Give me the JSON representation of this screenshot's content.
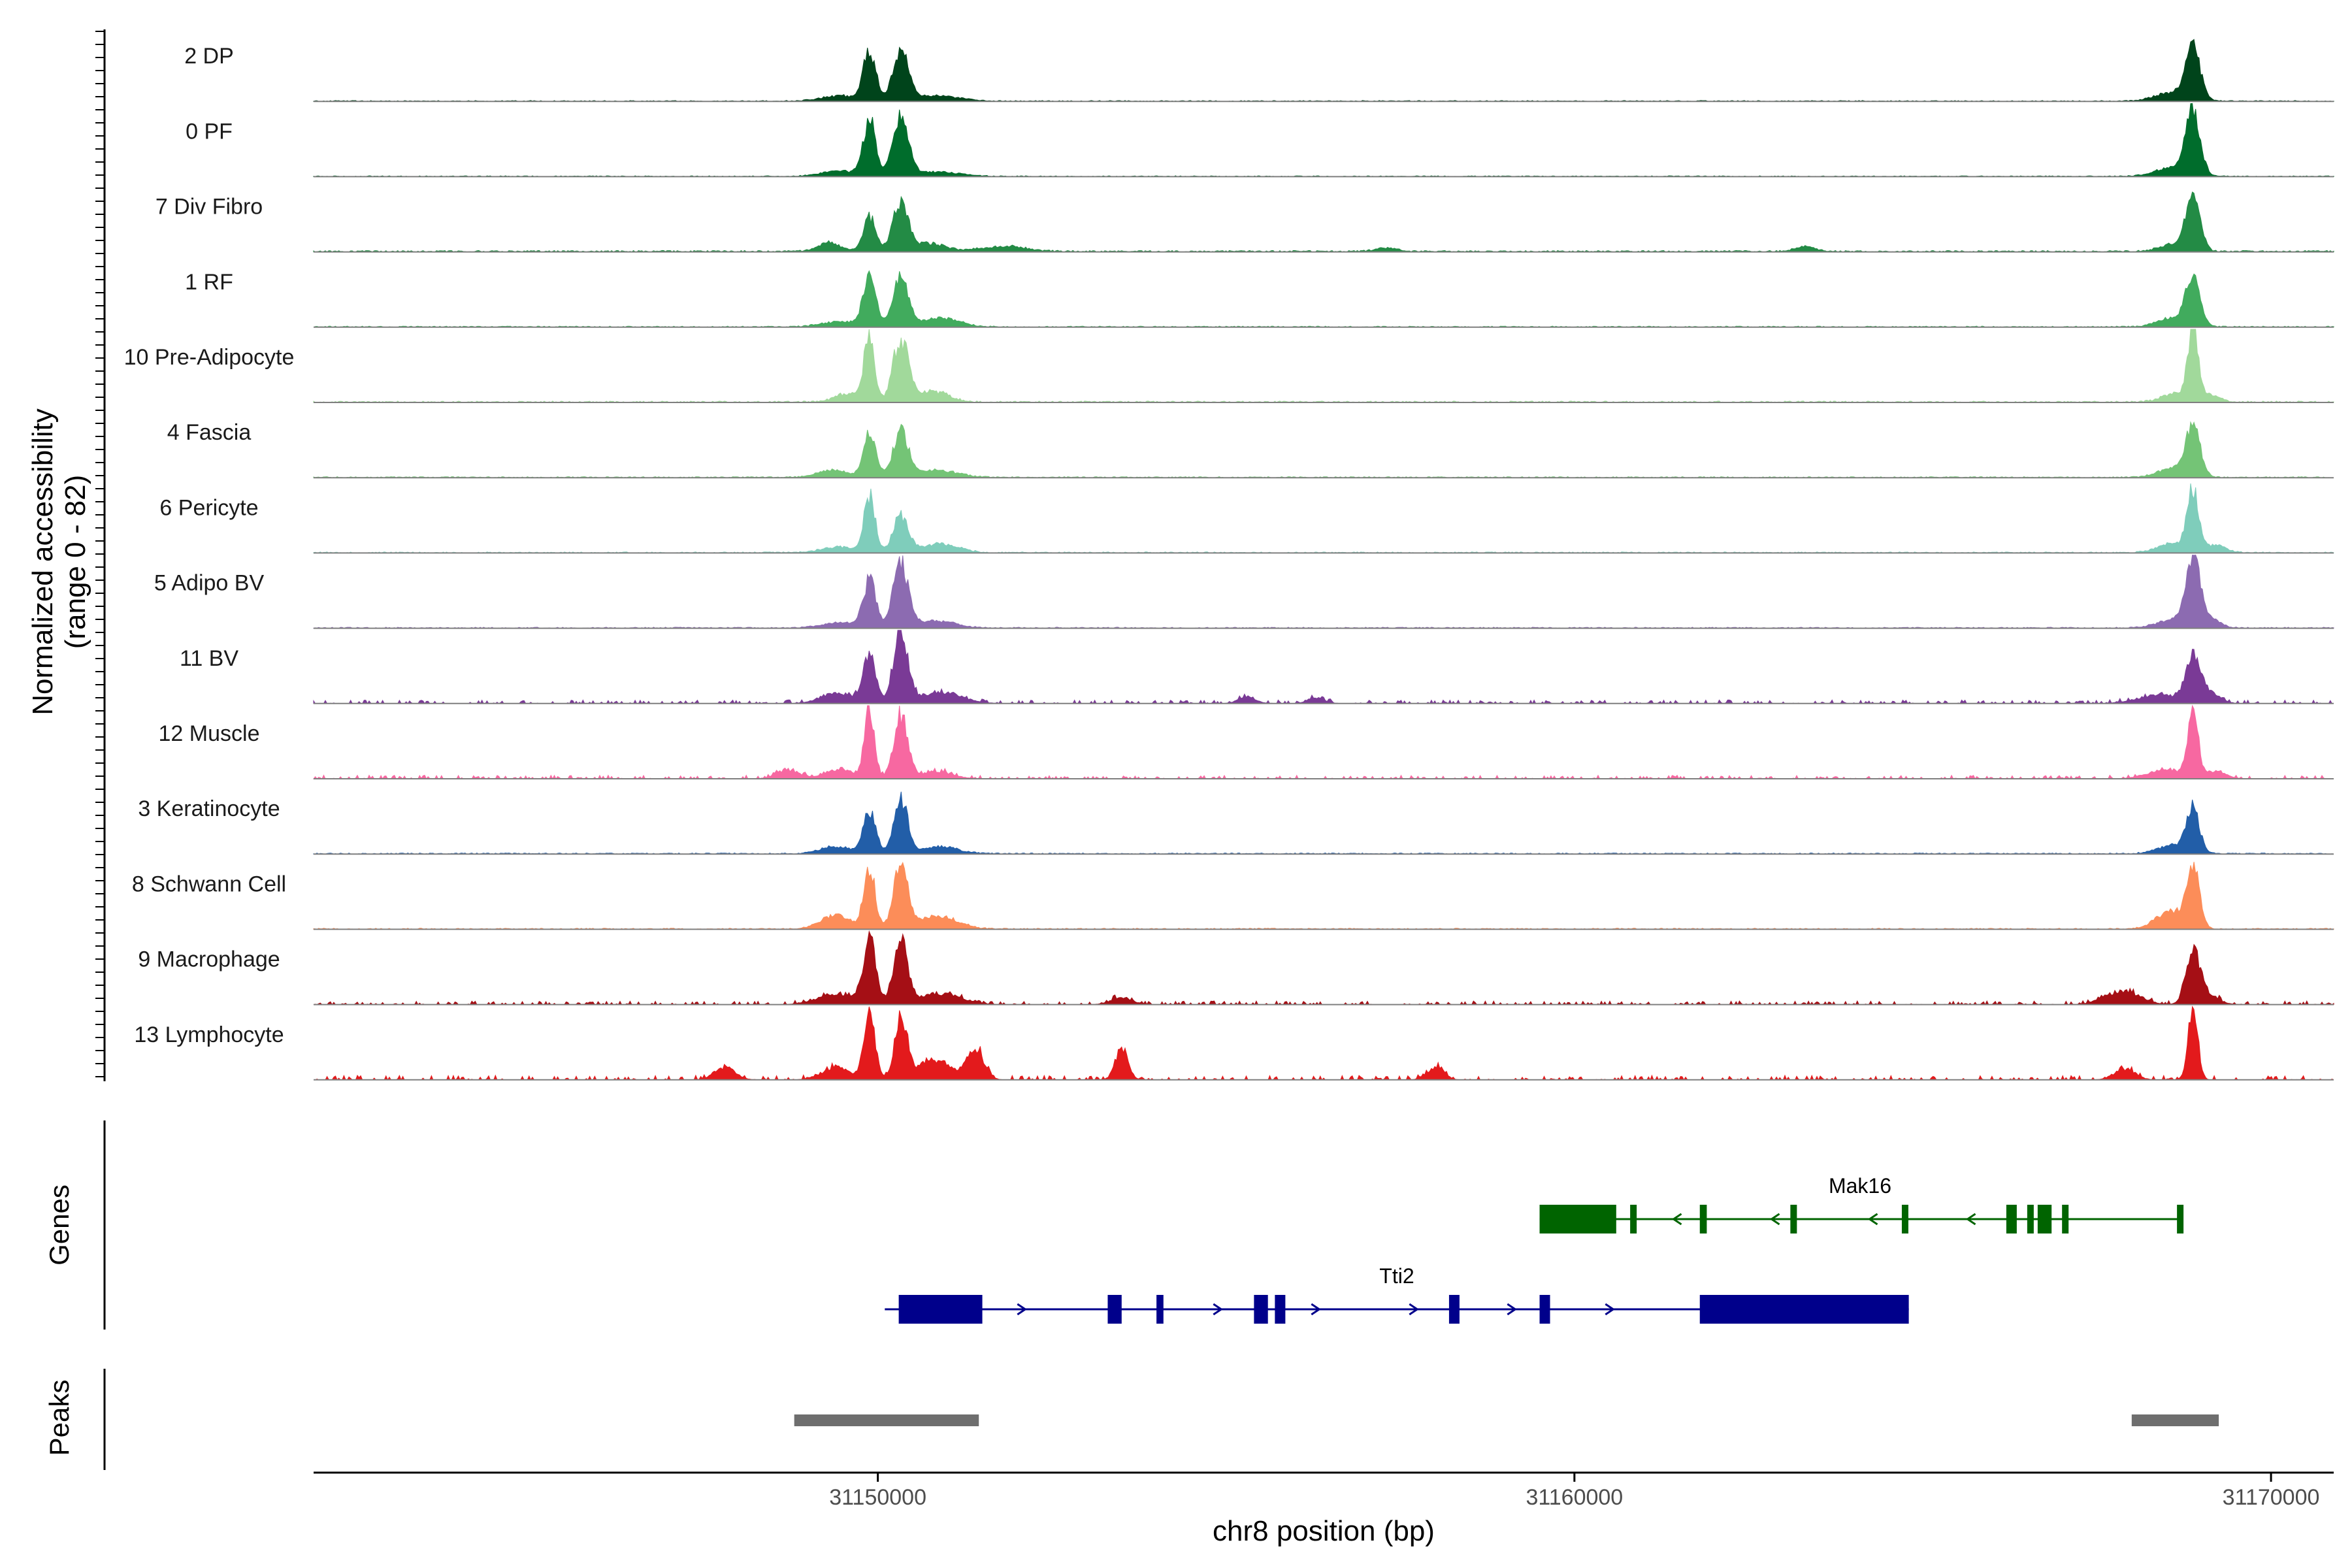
{
  "chart_data": {
    "type": "area",
    "subtype": "genome-coverage-track",
    "region": {
      "chrom": "chr8",
      "start": 31141900,
      "end": 31170900
    },
    "y_axis_title_line1": "Normalized accessibility",
    "y_axis_title_line2": "(range 0 - 82)",
    "y_range": [
      0,
      82
    ],
    "xlabel": "chr8 position (bp)",
    "x_ticks": [
      31150000,
      31160000,
      31170000
    ],
    "x_tick_labels": [
      "31150000",
      "31160000",
      "31170000"
    ],
    "tracks": [
      {
        "name": "2 DP",
        "color": "#00441b",
        "dense": 0.8,
        "noise": 1.0,
        "peaks": [
          [
            31149880,
            55,
            90
          ],
          [
            31150330,
            55,
            110
          ],
          [
            31149450,
            6,
            260
          ],
          [
            31150850,
            6,
            320
          ],
          [
            31168880,
            60,
            100
          ],
          [
            31168600,
            10,
            250
          ]
        ]
      },
      {
        "name": "0 PF",
        "color": "#006d2c",
        "dense": 0.8,
        "noise": 1.0,
        "peaks": [
          [
            31149880,
            62,
            90
          ],
          [
            31150330,
            65,
            110
          ],
          [
            31149450,
            6,
            260
          ],
          [
            31150850,
            5,
            320
          ],
          [
            31168880,
            70,
            100
          ],
          [
            31168600,
            10,
            250
          ]
        ]
      },
      {
        "name": "7 Div Fibro",
        "color": "#238b45",
        "dense": 0.9,
        "noise": 1.6,
        "peaks": [
          [
            31149880,
            38,
            90
          ],
          [
            31150330,
            55,
            110
          ],
          [
            31149300,
            10,
            160
          ],
          [
            31150750,
            9,
            220
          ],
          [
            31151800,
            6,
            300
          ],
          [
            31168880,
            62,
            100
          ],
          [
            31168600,
            8,
            200
          ],
          [
            31157300,
            4,
            150
          ],
          [
            31163300,
            5,
            150
          ]
        ]
      },
      {
        "name": "1 RF",
        "color": "#41ab5d",
        "dense": 0.8,
        "noise": 1.2,
        "peaks": [
          [
            31149880,
            55,
            90
          ],
          [
            31150330,
            55,
            110
          ],
          [
            31150900,
            10,
            260
          ],
          [
            31149450,
            6,
            260
          ],
          [
            31168880,
            55,
            100
          ],
          [
            31168600,
            10,
            220
          ]
        ]
      },
      {
        "name": "10 Pre-Adipocyte",
        "color": "#a1d99b",
        "dense": 0.8,
        "noise": 1.6,
        "peaks": [
          [
            31149880,
            78,
            70
          ],
          [
            31150330,
            70,
            110
          ],
          [
            31149600,
            10,
            200
          ],
          [
            31150800,
            12,
            220
          ],
          [
            31168880,
            82,
            70
          ],
          [
            31168650,
            10,
            200
          ],
          [
            31169100,
            8,
            150
          ]
        ]
      },
      {
        "name": "4 Fascia",
        "color": "#74c476",
        "dense": 0.8,
        "noise": 1.2,
        "peaks": [
          [
            31149880,
            48,
            90
          ],
          [
            31150330,
            50,
            110
          ],
          [
            31149350,
            8,
            220
          ],
          [
            31150850,
            8,
            300
          ],
          [
            31168880,
            55,
            100
          ],
          [
            31168600,
            10,
            220
          ]
        ]
      },
      {
        "name": "6 Pericyte",
        "color": "#7fcdbb",
        "dense": 0.8,
        "noise": 1.2,
        "peaks": [
          [
            31149880,
            62,
            80
          ],
          [
            31150330,
            40,
            110
          ],
          [
            31150900,
            10,
            260
          ],
          [
            31149450,
            6,
            260
          ],
          [
            31168880,
            68,
            80
          ],
          [
            31168600,
            10,
            220
          ],
          [
            31169200,
            8,
            150
          ]
        ]
      },
      {
        "name": "5 Adipo BV",
        "color": "#8c6bb1",
        "dense": 0.8,
        "noise": 1.2,
        "peaks": [
          [
            31149880,
            52,
            90
          ],
          [
            31150330,
            72,
            110
          ],
          [
            31150850,
            8,
            260
          ],
          [
            31149450,
            6,
            260
          ],
          [
            31168880,
            70,
            100
          ],
          [
            31168600,
            10,
            220
          ],
          [
            31169100,
            12,
            150
          ]
        ]
      },
      {
        "name": "11 BV",
        "color": "#7a3a96",
        "dense": 0.35,
        "noise": 4.0,
        "peaks": [
          [
            31149880,
            55,
            90
          ],
          [
            31150330,
            82,
            100
          ],
          [
            31149400,
            12,
            220
          ],
          [
            31150900,
            12,
            300
          ],
          [
            31168880,
            48,
            100
          ],
          [
            31168400,
            10,
            300
          ],
          [
            31169100,
            12,
            150
          ],
          [
            31155300,
            8,
            120
          ],
          [
            31156300,
            6,
            120
          ]
        ]
      },
      {
        "name": "12 Muscle",
        "color": "#f768a1",
        "dense": 0.35,
        "noise": 4.0,
        "peaks": [
          [
            31149880,
            78,
            70
          ],
          [
            31150330,
            72,
            100
          ],
          [
            31149450,
            10,
            220
          ],
          [
            31150850,
            8,
            220
          ],
          [
            31168880,
            78,
            70
          ],
          [
            31168500,
            10,
            260
          ],
          [
            31169200,
            8,
            150
          ],
          [
            31148700,
            10,
            150
          ]
        ]
      },
      {
        "name": "3 Keratinocyte",
        "color": "#225ea8",
        "dense": 0.8,
        "noise": 1.2,
        "peaks": [
          [
            31149880,
            48,
            90
          ],
          [
            31150330,
            60,
            100
          ],
          [
            31149400,
            8,
            220
          ],
          [
            31150900,
            8,
            260
          ],
          [
            31168880,
            48,
            90
          ],
          [
            31168600,
            10,
            220
          ]
        ]
      },
      {
        "name": "8 Schwann Cell",
        "color": "#fc8d59",
        "dense": 0.8,
        "noise": 1.2,
        "peaks": [
          [
            31149880,
            68,
            80
          ],
          [
            31150330,
            72,
            100
          ],
          [
            31149400,
            15,
            220
          ],
          [
            31150850,
            15,
            280
          ],
          [
            31168880,
            72,
            90
          ],
          [
            31168550,
            20,
            200
          ]
        ]
      },
      {
        "name": "9 Macrophage",
        "color": "#a50f15",
        "dense": 0.35,
        "noise": 4.0,
        "peaks": [
          [
            31149880,
            72,
            90
          ],
          [
            31150330,
            68,
            100
          ],
          [
            31149400,
            12,
            260
          ],
          [
            31150900,
            12,
            300
          ],
          [
            31168880,
            60,
            100
          ],
          [
            31168000,
            10,
            200
          ],
          [
            31167700,
            8,
            200
          ],
          [
            31169100,
            10,
            150
          ],
          [
            31153500,
            8,
            150
          ]
        ]
      },
      {
        "name": "13 Lymphocyte",
        "color": "#e31a1c",
        "dense": 0.3,
        "noise": 5.0,
        "peaks": [
          [
            31149880,
            72,
            80
          ],
          [
            31150330,
            68,
            90
          ],
          [
            31151400,
            35,
            120
          ],
          [
            31150800,
            22,
            240
          ],
          [
            31149400,
            14,
            200
          ],
          [
            31153500,
            35,
            90
          ],
          [
            31168880,
            78,
            70
          ],
          [
            31167900,
            12,
            150
          ],
          [
            31158000,
            14,
            120
          ],
          [
            31147800,
            14,
            150
          ]
        ]
      }
    ],
    "genes_panel_title": "Genes",
    "genes": [
      {
        "name": "Mak16",
        "color": "#006400",
        "strand": "-",
        "start": 31159500,
        "end": 31168700,
        "exons": [
          [
            31159500,
            31160600
          ],
          [
            31160800,
            31160860
          ],
          [
            31161800,
            31161900
          ],
          [
            31163100,
            31163160
          ],
          [
            31164700,
            31164760
          ],
          [
            31166200,
            31166350
          ],
          [
            31166500,
            31166560
          ],
          [
            31166650,
            31166850
          ],
          [
            31167000,
            31167060
          ],
          [
            31168650,
            31168700
          ]
        ],
        "thick": [
          [
            31159500,
            31160600
          ],
          [
            31166200,
            31166350
          ],
          [
            31166650,
            31166850
          ]
        ]
      },
      {
        "name": "Tti2",
        "color": "#00008b",
        "strand": "+",
        "start": 31150100,
        "end": 31164800,
        "exons": [
          [
            31150300,
            31151500
          ],
          [
            31153300,
            31153500
          ],
          [
            31154000,
            31154100
          ],
          [
            31155400,
            31155600
          ],
          [
            31155700,
            31155850
          ],
          [
            31158200,
            31158350
          ],
          [
            31159500,
            31159650
          ],
          [
            31161800,
            31164800
          ]
        ],
        "thick": [
          [
            31150300,
            31151500
          ],
          [
            31161800,
            31164800
          ]
        ]
      }
    ],
    "peaks_panel_title": "Peaks",
    "peak_regions": [
      [
        31148800,
        31151450
      ],
      [
        31168000,
        31169250
      ]
    ]
  }
}
